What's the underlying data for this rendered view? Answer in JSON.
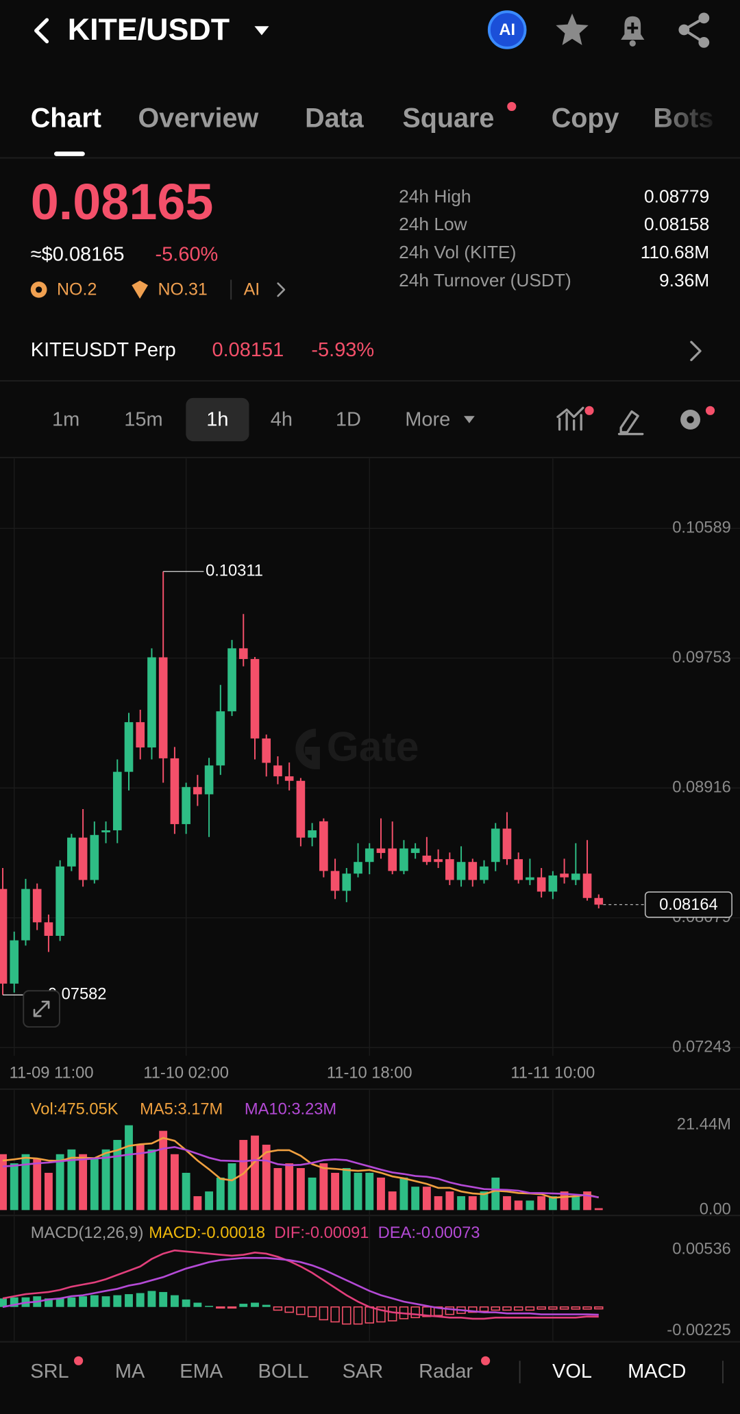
{
  "header": {
    "pair": "KITE/USDT",
    "ai": "AI"
  },
  "tabs": [
    "Chart",
    "Overview",
    "Data",
    "Square",
    "Copy",
    "Bots"
  ],
  "ticker": {
    "price": "0.08165",
    "usd": "≈$0.08165",
    "change": "-5.60%",
    "ranks": [
      "NO.2",
      "NO.31",
      "AI"
    ],
    "stats": [
      {
        "label": "24h High",
        "value": "0.08779"
      },
      {
        "label": "24h Low",
        "value": "0.08158"
      },
      {
        "label": "24h Vol (KITE)",
        "value": "110.68M"
      },
      {
        "label": "24h Turnover (USDT)",
        "value": "9.36M"
      }
    ]
  },
  "perp": {
    "name": "KITEUSDT Perp",
    "price": "0.08151",
    "change": "-5.93%"
  },
  "intervals": [
    "1m",
    "15m",
    "1h",
    "4h",
    "1D",
    "More"
  ],
  "watermark": "Gate",
  "chart_data": [
    {
      "type": "candlestick",
      "up_color": "#2ebd85",
      "down_color": "#f4506a",
      "grid": true,
      "xlim": [
        -0.24,
        64.33
      ],
      "ylim": [
        0.0719,
        0.1104
      ],
      "yticks": [
        0.10589,
        0.09753,
        0.08916,
        0.08079,
        0.07243
      ],
      "xticks": [
        {
          "value": 1,
          "label": "11-09 11:00"
        },
        {
          "value": 16,
          "label": "11-10 02:00"
        },
        {
          "value": 32,
          "label": "11-10 18:00"
        },
        {
          "value": 48,
          "label": "11-11 10:00"
        }
      ],
      "open": [
        0.08265,
        0.07655,
        0.07934,
        0.08265,
        0.0805,
        0.07963,
        0.0841,
        0.08596,
        0.08323,
        0.0863,
        0.08643,
        0.0902,
        0.0934,
        0.09177,
        0.09758,
        0.09107,
        0.08683,
        0.08922,
        0.08875,
        0.09061,
        0.0941,
        0.09816,
        0.09747,
        0.09235,
        0.09061,
        0.08991,
        0.08962,
        0.08596,
        0.08701,
        0.08381,
        0.08253,
        0.08364,
        0.08439,
        0.08526,
        0.08526,
        0.08381,
        0.08497,
        0.0848,
        0.08457,
        0.08457,
        0.08323,
        0.08439,
        0.08323,
        0.08439,
        0.08654,
        0.08457,
        0.08323,
        0.0834,
        0.08248,
        0.08364,
        0.08323,
        0.08364,
        0.08207
      ],
      "high": [
        0.084,
        0.0799,
        0.0833,
        0.083,
        0.081,
        0.0845,
        0.0862,
        0.0878,
        0.087,
        0.087,
        0.091,
        0.094,
        0.0942,
        0.09816,
        0.10311,
        0.0918,
        0.0895,
        0.09,
        0.0911,
        0.0958,
        0.0987,
        0.10037,
        0.0976,
        0.0926,
        0.0912,
        0.0908,
        0.0898,
        0.0869,
        0.0872,
        0.0846,
        0.084,
        0.0856,
        0.0856,
        0.0872,
        0.087,
        0.0858,
        0.0856,
        0.086,
        0.0852,
        0.085,
        0.0854,
        0.0846,
        0.0845,
        0.0869,
        0.0876,
        0.085,
        0.0846,
        0.084,
        0.0838,
        0.0846,
        0.0856,
        0.0858,
        0.0823
      ],
      "low": [
        0.07582,
        0.07597,
        0.079,
        0.08,
        0.07859,
        0.0793,
        0.0838,
        0.0828,
        0.083,
        0.0856,
        0.0856,
        0.089,
        0.091,
        0.091,
        0.0895,
        0.0862,
        0.0862,
        0.088,
        0.086,
        0.09,
        0.0938,
        0.097,
        0.091,
        0.0899,
        0.0894,
        0.089,
        0.0854,
        0.0854,
        0.0834,
        0.082,
        0.0818,
        0.0834,
        0.0836,
        0.0846,
        0.0836,
        0.0836,
        0.0846,
        0.0842,
        0.084,
        0.0829,
        0.0828,
        0.0828,
        0.083,
        0.0838,
        0.0842,
        0.083,
        0.0829,
        0.0821,
        0.082,
        0.083,
        0.0829,
        0.0819,
        0.0814
      ],
      "close": [
        0.07655,
        0.07934,
        0.08265,
        0.0805,
        0.07963,
        0.0841,
        0.08596,
        0.08323,
        0.08613,
        0.08643,
        0.0902,
        0.0934,
        0.09177,
        0.09758,
        0.09107,
        0.08683,
        0.08922,
        0.08875,
        0.09061,
        0.0941,
        0.09816,
        0.09747,
        0.09235,
        0.09078,
        0.08991,
        0.08962,
        0.08596,
        0.08643,
        0.08381,
        0.08253,
        0.08364,
        0.08439,
        0.08526,
        0.08497,
        0.08381,
        0.08526,
        0.08526,
        0.08439,
        0.08439,
        0.08323,
        0.08439,
        0.08323,
        0.0841,
        0.08654,
        0.08457,
        0.08323,
        0.0834,
        0.08248,
        0.08352,
        0.0834,
        0.08364,
        0.08207,
        0.08164
      ]
    },
    {
      "type": "bar",
      "grid": false,
      "xlim": [
        -0.24,
        64.33
      ],
      "ylim": [
        0,
        23
      ],
      "yticks": [
        {
          "value": 21.44,
          "label": "21.44M"
        },
        {
          "value": 0,
          "label": "0.00"
        }
      ],
      "series": [
        {
          "name": "Vol:475.05K",
          "type": "bar",
          "color": "#f0a73a",
          "values": [
            14.1,
            11.8,
            14.1,
            13.0,
            9.4,
            14.1,
            15.3,
            14.1,
            13.0,
            15.3,
            17.7,
            21.4,
            16.5,
            15.3,
            20.0,
            14.1,
            9.4,
            3.5,
            4.7,
            8.2,
            11.8,
            17.7,
            18.8,
            16.5,
            10.6,
            11.8,
            10.6,
            8.2,
            11.8,
            9.4,
            10.6,
            9.4,
            9.4,
            8.2,
            4.7,
            8.2,
            5.9,
            5.9,
            3.5,
            4.7,
            3.5,
            3.5,
            4.7,
            8.2,
            3.5,
            2.4,
            2.4,
            3.5,
            3.5,
            4.7,
            3.5,
            4.7,
            0.47505
          ]
        },
        {
          "name": "MA5:3.17M",
          "type": "line",
          "color": "#f0a040",
          "values": [
            12.5,
            12.8,
            13.2,
            13.0,
            12.5,
            12.4,
            13.2,
            13.2,
            13.1,
            14.4,
            15.1,
            16.2,
            16.6,
            16.8,
            18.2,
            17.5,
            15.1,
            12.5,
            10.3,
            7.9,
            7.5,
            9.2,
            12.2,
            14.6,
            15.1,
            15.1,
            13.7,
            11.6,
            10.6,
            10.4,
            10.1,
            9.9,
            10.1,
            9.4,
            8.5,
            8.0,
            7.3,
            6.6,
            5.6,
            5.6,
            4.7,
            4.2,
            4.0,
            4.9,
            4.7,
            4.3,
            4.2,
            4.0,
            3.1,
            3.3,
            3.5,
            3.9,
            3.17
          ]
        },
        {
          "name": "MA10:3.23M",
          "type": "line",
          "color": "#b44ad6",
          "values": [
            11.0,
            11.2,
            11.5,
            11.8,
            12.0,
            12.3,
            12.6,
            12.8,
            13.0,
            13.2,
            13.6,
            14.0,
            14.3,
            14.7,
            15.5,
            15.9,
            15.2,
            14.2,
            13.2,
            12.5,
            12.4,
            12.3,
            12.6,
            12.5,
            11.6,
            11.3,
            11.4,
            11.9,
            12.6,
            12.8,
            12.6,
            11.8,
            11.0,
            10.2,
            9.5,
            9.1,
            8.6,
            8.4,
            7.9,
            7.0,
            6.3,
            5.8,
            5.3,
            5.2,
            5.1,
            4.9,
            4.3,
            4.3,
            4.2,
            4.1,
            3.9,
            3.7,
            3.23
          ]
        }
      ]
    },
    {
      "type": "bar",
      "title": "MACD(12,26,9)",
      "grid": false,
      "xlim": [
        -0.24,
        64.33
      ],
      "ylim": [
        -0.0031,
        0.0079
      ],
      "yticks": [
        0.00536,
        -0.00225
      ],
      "series": [
        {
          "name": "MACD:-0.00018",
          "type": "bar",
          "color": "#f0b90b",
          "values": [
            0.0008,
            0.0009,
            0.0009,
            0.001,
            0.0008,
            0.0008,
            0.0009,
            0.001,
            0.0011,
            0.001,
            0.0011,
            0.0012,
            0.0013,
            0.0015,
            0.0014,
            0.0011,
            0.0007,
            0.0004,
            0.0001,
            -0.0001,
            -0.0001,
            0.0003,
            0.0004,
            0.0002,
            -0.0003,
            -0.0005,
            -0.0007,
            -0.0009,
            -0.0012,
            -0.0014,
            -0.0016,
            -0.0016,
            -0.0015,
            -0.0014,
            -0.0013,
            -0.0011,
            -0.001,
            -0.0009,
            -0.0008,
            -0.0007,
            -0.0006,
            -0.0005,
            -0.0004,
            -0.0003,
            -0.0003,
            -0.0003,
            -0.0003,
            -0.0002,
            -0.0002,
            -0.0002,
            -0.0002,
            -0.0002,
            -0.00018
          ]
        },
        {
          "name": "DIF:-0.00091",
          "type": "line",
          "color": "#e23f7c",
          "values": [
            0.0008,
            0.001,
            0.0012,
            0.0013,
            0.0014,
            0.0016,
            0.0019,
            0.0021,
            0.0023,
            0.0026,
            0.003,
            0.0034,
            0.0038,
            0.0045,
            0.005,
            0.0053,
            0.0052,
            0.0051,
            0.005,
            0.0049,
            0.0048,
            0.0049,
            0.0051,
            0.005,
            0.0047,
            0.0043,
            0.0038,
            0.0032,
            0.0025,
            0.0018,
            0.0011,
            0.0005,
            0,
            -0.0003,
            -0.0005,
            -0.0006,
            -0.0007,
            -0.0008,
            -0.0009,
            -0.001,
            -0.001,
            -0.0011,
            -0.0011,
            -0.001,
            -0.001,
            -0.001,
            -0.001,
            -0.001,
            -0.001,
            -0.001,
            -0.001,
            -0.0009,
            -0.00091
          ]
        },
        {
          "name": "DEA:-0.00073",
          "type": "line",
          "color": "#b44ad6",
          "values": [
            0,
            0.0002,
            0.0004,
            0.0005,
            0.0007,
            0.0008,
            0.001,
            0.0011,
            0.0013,
            0.0015,
            0.0017,
            0.002,
            0.0022,
            0.0025,
            0.0028,
            0.0032,
            0.0036,
            0.0039,
            0.0042,
            0.0044,
            0.0045,
            0.0046,
            0.0046,
            0.0046,
            0.0045,
            0.0044,
            0.0042,
            0.0039,
            0.0035,
            0.003,
            0.0025,
            0.002,
            0.0015,
            0.0011,
            0.0008,
            0.0005,
            0.0003,
            0.0001,
            -0.0001,
            -0.0002,
            -0.0003,
            -0.0004,
            -0.0005,
            -0.0005,
            -0.0006,
            -0.0006,
            -0.0006,
            -0.0007,
            -0.0007,
            -0.0007,
            -0.0007,
            -0.0007,
            -0.00073
          ]
        }
      ]
    }
  ],
  "indicators": [
    "SRL",
    "MA",
    "EMA",
    "BOLL",
    "SAR",
    "Radar",
    "VOL",
    "MACD"
  ]
}
